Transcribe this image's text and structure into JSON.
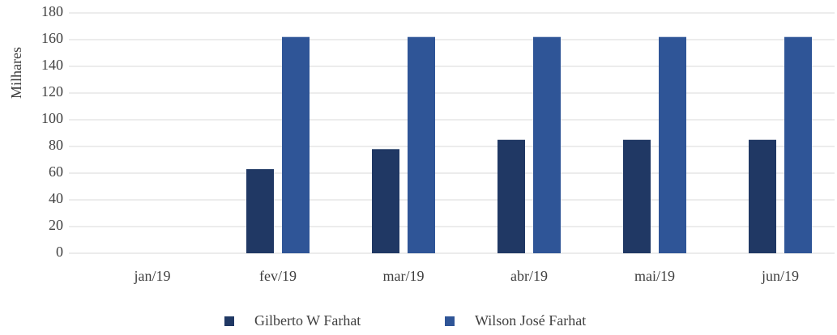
{
  "chart_data": {
    "type": "bar",
    "y_label": "Milhares",
    "categories": [
      "jan/19",
      "fev/19",
      "mar/19",
      "abr/19",
      "mai/19",
      "jun/19"
    ],
    "series": [
      {
        "name": "Gilberto W Farhat",
        "color": "#203864",
        "values": [
          0,
          63,
          78,
          85,
          85,
          85
        ]
      },
      {
        "name": "Wilson José Farhat",
        "color": "#2f5597",
        "values": [
          0,
          162,
          162,
          162,
          162,
          162
        ]
      }
    ],
    "ylim": [
      0,
      180
    ],
    "yticks": [
      0,
      20,
      40,
      60,
      80,
      100,
      120,
      140,
      160,
      180
    ],
    "grid": true,
    "legend": "bottom"
  }
}
